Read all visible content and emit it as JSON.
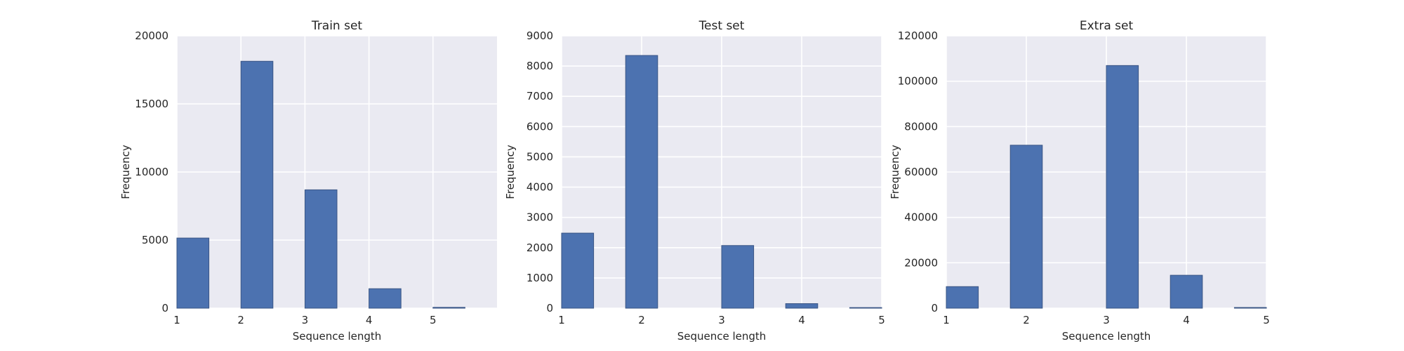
{
  "chart_data": [
    {
      "type": "bar",
      "title": "Train set",
      "xlabel": "Sequence length",
      "ylabel": "Frequency",
      "xlim": [
        1,
        6
      ],
      "ylim": [
        0,
        20000
      ],
      "xticks": [
        1,
        2,
        3,
        4,
        5
      ],
      "yticks": [
        0,
        5000,
        10000,
        15000,
        20000
      ],
      "bin_width": 0.5,
      "bars": [
        {
          "x": 1,
          "value": 5150
        },
        {
          "x": 2,
          "value": 18130
        },
        {
          "x": 3,
          "value": 8690
        },
        {
          "x": 4,
          "value": 1430
        },
        {
          "x": 5,
          "value": 60
        }
      ],
      "grid": true
    },
    {
      "type": "bar",
      "title": "Test set",
      "xlabel": "Sequence length",
      "ylabel": "Frequency",
      "xlim": [
        1,
        5
      ],
      "ylim": [
        0,
        9000
      ],
      "xticks": [
        1,
        2,
        3,
        4,
        5
      ],
      "yticks": [
        0,
        1000,
        2000,
        3000,
        4000,
        5000,
        6000,
        7000,
        8000,
        9000
      ],
      "bin_width": 0.4,
      "bars": [
        {
          "x": 1,
          "value": 2480
        },
        {
          "x": 1.8,
          "value": 8350
        },
        {
          "x": 3,
          "value": 2070
        },
        {
          "x": 3.8,
          "value": 150
        },
        {
          "x": 4.6,
          "value": 20
        }
      ],
      "grid": true
    },
    {
      "type": "bar",
      "title": "Extra set",
      "xlabel": "Sequence length",
      "ylabel": "Frequency",
      "xlim": [
        1,
        5
      ],
      "ylim": [
        0,
        120000
      ],
      "xticks": [
        1,
        2,
        3,
        4,
        5
      ],
      "yticks": [
        0,
        20000,
        40000,
        60000,
        80000,
        100000,
        120000
      ],
      "bin_width": 0.4,
      "bars": [
        {
          "x": 1,
          "value": 9500
        },
        {
          "x": 1.8,
          "value": 71800
        },
        {
          "x": 3,
          "value": 106900
        },
        {
          "x": 3.8,
          "value": 14500
        },
        {
          "x": 4.6,
          "value": 300
        }
      ],
      "grid": true
    }
  ]
}
